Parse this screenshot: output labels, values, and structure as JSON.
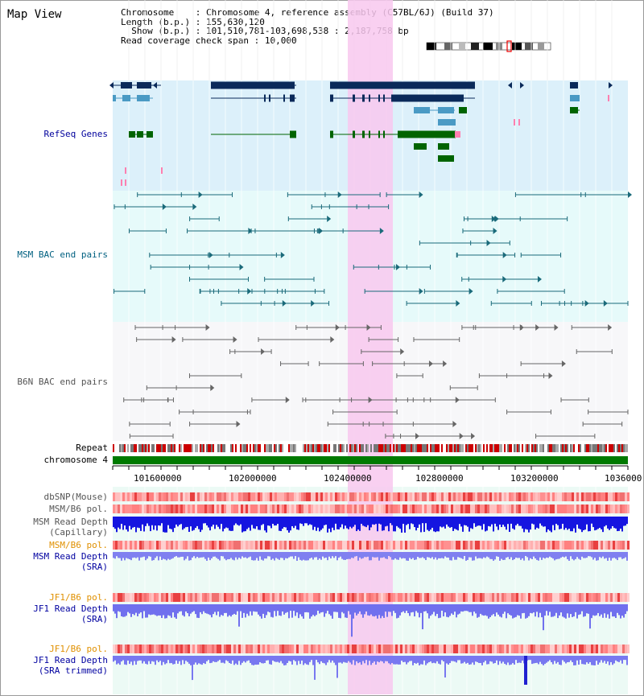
{
  "window": {
    "title": "Map View"
  },
  "info": {
    "chromosome_label": "Chromosome",
    "chromosome_value": "Chromosome 4, reference assembly (C57BL/6J) (Build 37)",
    "length_label": "Length (b.p.)",
    "length_value": "155,630,120",
    "show_label": "Show (b.p.)",
    "show_value": "101,510,781-103,698,538 : 2,187,758 bp",
    "coverage_label": "Read coverage check span",
    "coverage_value": "10,000"
  },
  "tracks": {
    "refseq": "RefSeq Genes",
    "msm_bac": "MSM BAC end pairs",
    "b6n_bac": "B6N BAC end pairs",
    "repeat": "Repeat",
    "chromosome": "chromosome 4",
    "dbsnp": "dbSNP(Mouse)",
    "msm_b6_pol_1": "MSM/B6 pol.",
    "msm_depth_cap_1": "MSM Read Depth",
    "msm_depth_cap_2": "(Capillary)",
    "msm_b6_pol_2": "MSM/B6 pol.",
    "msm_depth_sra_1": "MSM Read Depth",
    "msm_depth_sra_2": "(SRA)",
    "jf1_b6_pol_1": "JF1/B6 pol.",
    "jf1_depth_sra_1": "JF1 Read Depth",
    "jf1_depth_sra_2": "(SRA)",
    "jf1_b6_pol_2": "JF1/B6 pol.",
    "jf1_depth_trim_1": "JF1 Read Depth",
    "jf1_depth_trim_2": "(SRA trimmed)"
  },
  "axis": {
    "ticks": [
      "101600000",
      "102000000",
      "102400000",
      "102800000",
      "103200000",
      "1036000"
    ]
  },
  "colors": {
    "refseq_bg": "#dcf0fa",
    "msm_bg": "#e6fafa",
    "b6n_bg": "#f7f7f9",
    "lower_bg": "#ecfaf5",
    "highlight": "#f8c8ee",
    "refseq_label": "#00009c",
    "msm_label": "#006080",
    "b6n_label": "#555555",
    "pol_label": "#e09000",
    "depth_label": "#0000a0",
    "chromosome_bar": "#007a00"
  }
}
